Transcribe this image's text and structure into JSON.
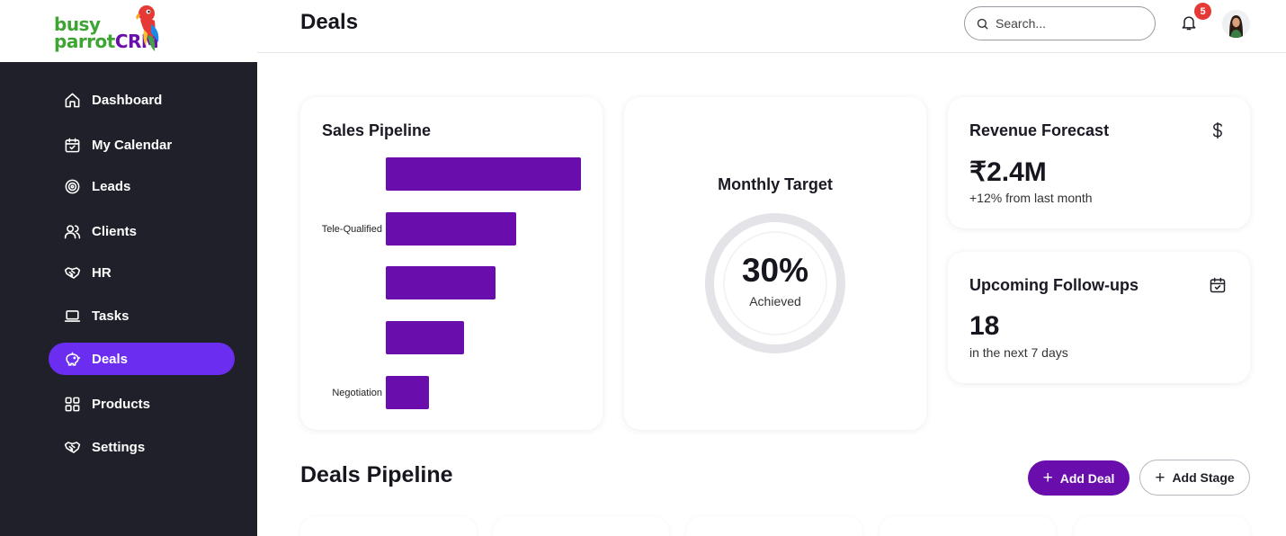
{
  "brand": {
    "line1": "busy",
    "line2": "parrot",
    "crm": "CRM"
  },
  "header": {
    "title": "Deals",
    "search_placeholder": "Search...",
    "notification_count": "5"
  },
  "sidebar": {
    "items": [
      {
        "label": "Dashboard",
        "icon": "home-icon"
      },
      {
        "label": "My Calendar",
        "icon": "calendar-icon"
      },
      {
        "label": "Leads",
        "icon": "target-icon"
      },
      {
        "label": "Clients",
        "icon": "users-icon"
      },
      {
        "label": "HR",
        "icon": "handshake-icon"
      },
      {
        "label": "Tasks",
        "icon": "laptop-icon"
      },
      {
        "label": "Deals",
        "icon": "piggy-bank-icon",
        "active": true
      },
      {
        "label": "Products",
        "icon": "grid-icon"
      },
      {
        "label": "Settings",
        "icon": "handshake-icon"
      }
    ]
  },
  "sales_pipeline": {
    "title": "Sales Pipeline",
    "labels": [
      "",
      "Tele-Qualified",
      "",
      "",
      "Negotiation"
    ]
  },
  "chart_data": {
    "type": "bar",
    "orientation": "horizontal",
    "title": "Sales Pipeline",
    "categories": [
      "",
      "Tele-Qualified",
      "",
      "",
      "Negotiation"
    ],
    "values": [
      100,
      67,
      56,
      40,
      22
    ],
    "color": "#6a0dad",
    "grid": false
  },
  "monthly_target": {
    "title": "Monthly Target",
    "value": "30%",
    "sub": "Achieved",
    "progress": 0.3
  },
  "revenue": {
    "title": "Revenue Forecast",
    "value": "₹2.4M",
    "note": "+12% from last month",
    "icon": "dollar-icon"
  },
  "followups": {
    "title": "Upcoming Follow-ups",
    "value": "18",
    "note": "in the next 7 days",
    "icon": "calendar-check-icon"
  },
  "deals_pipeline": {
    "title": "Deals Pipeline",
    "add_deal": "Add Deal",
    "add_stage": "Add Stage"
  },
  "colors": {
    "sidebar": "#1f2029",
    "active": "#6b2ef0",
    "brand_purple": "#6a0dad",
    "brand_green": "#3ea433",
    "ring_track": "#e3e3e8"
  }
}
